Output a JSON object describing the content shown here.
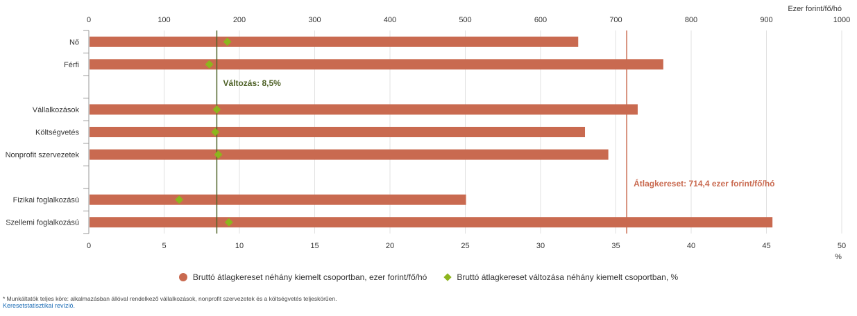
{
  "chart_data": {
    "type": "bar",
    "categories": [
      "Nő",
      "Férfi",
      "",
      "Vállalkozások",
      "Költségvetés",
      "Nonprofit szervezetek",
      "",
      "Fizikai foglalkozású",
      "Szellemi foglalkozású"
    ],
    "series": [
      {
        "name": "Bruttó átlagkereset néhány kiemelt csoportban, ezer forint/fő/hó",
        "axis": "top",
        "values": [
          650,
          763,
          null,
          729,
          659,
          690,
          null,
          501,
          908
        ]
      },
      {
        "name": "Bruttó átlagkereset változása néhány kiemelt csoportban, %",
        "axis": "bottom",
        "marker": "diamond",
        "values": [
          9.2,
          8.0,
          null,
          8.5,
          8.4,
          8.6,
          null,
          6.0,
          9.3
        ]
      }
    ],
    "top_axis": {
      "label": "Ezer forint/fő/hó",
      "range": [
        0,
        1000
      ],
      "ticks": [
        0,
        100,
        200,
        300,
        400,
        500,
        600,
        700,
        800,
        900,
        1000
      ]
    },
    "bottom_axis": {
      "label": "%",
      "range": [
        0,
        50
      ],
      "ticks": [
        0,
        5,
        10,
        15,
        20,
        25,
        30,
        35,
        40,
        45,
        50
      ]
    },
    "plot_lines": [
      {
        "axis": "bottom",
        "value": 8.5,
        "label": "Változás: 8,5%",
        "color": "#4f6228"
      },
      {
        "axis": "top",
        "value": 714.4,
        "label": "Átlagkereset: 714,4 ezer forint/fő/hó",
        "color": "#c96a50"
      }
    ],
    "grid": true,
    "legend_position": "bottom-center"
  },
  "colors": {
    "bar": "#c96a50",
    "diamond": "#8db51e",
    "change_line": "#4f6228",
    "average_line": "#c96a50",
    "grid": "#e0e0e0",
    "link": "#1a6bb5"
  },
  "legend": {
    "bar_label": "Bruttó átlagkereset néhány kiemelt csoportban, ezer forint/fő/hó",
    "diamond_label": "Bruttó átlagkereset változása néhány kiemelt csoportban, %"
  },
  "footnote": "* Munkáltatók teljes köre: alkalmazásban állóval rendelkező vállalkozások, nonprofit szervezetek és a költségvetés teljeskörűen.",
  "link_text": "Keresetstatisztikai revízió."
}
